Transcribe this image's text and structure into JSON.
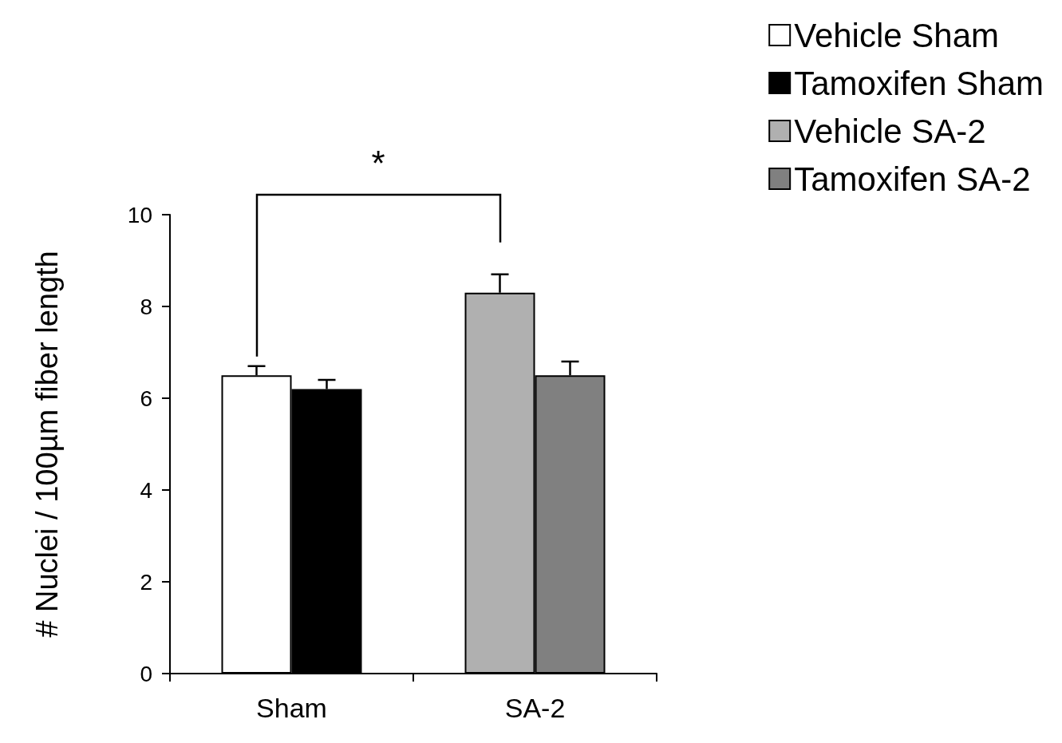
{
  "chart_data": {
    "type": "bar",
    "ylabel": "# Nuclei / 100µm fiber length",
    "categories": [
      "Sham",
      "SA-2"
    ],
    "series": [
      {
        "name": "Vehicle Sham",
        "color": "#ffffff",
        "values": [
          6.5,
          null
        ],
        "errors": [
          [
            6.5,
            6.7
          ],
          null
        ]
      },
      {
        "name": "Tamoxifen Sham",
        "color": "#000000",
        "values": [
          6.2,
          null
        ],
        "errors": [
          [
            6.2,
            6.4
          ],
          null
        ]
      },
      {
        "name": "Vehicle SA-2",
        "color": "#b0b0b0",
        "values": [
          null,
          8.3
        ],
        "errors": [
          null,
          [
            8.3,
            8.7
          ]
        ]
      },
      {
        "name": "Tamoxifen SA-2",
        "color": "#808080",
        "values": [
          null,
          6.5
        ],
        "errors": [
          null,
          [
            6.5,
            6.8
          ]
        ]
      }
    ],
    "ylim": [
      0,
      10
    ],
    "yticks": [
      0,
      2,
      4,
      6,
      8,
      10
    ],
    "grid": false,
    "legend": "top right",
    "annotations": [
      "*"
    ]
  }
}
